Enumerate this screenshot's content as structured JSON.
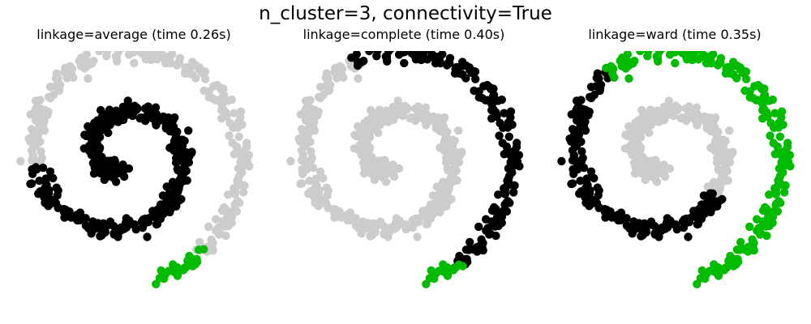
{
  "figure": {
    "title": "n_cluster=3, connectivity=True"
  },
  "chart_data": [
    {
      "type": "scatter",
      "title": "linkage=average (time 0.26s)",
      "xlabel": "",
      "ylabel": "",
      "axes_visible": false,
      "cluster_colors": [
        "#000000",
        "#cccccc",
        "#00bb00"
      ],
      "assignment": [
        {
          "cluster": 0,
          "t_from": 0.0,
          "t_to": 0.62
        },
        {
          "cluster": 1,
          "t_from": 0.62,
          "t_to": 0.965
        },
        {
          "cluster": 2,
          "t_from": 0.965,
          "t_to": 1.0
        }
      ]
    },
    {
      "type": "scatter",
      "title": "linkage=complete (time 0.40s)",
      "xlabel": "",
      "ylabel": "",
      "axes_visible": false,
      "cluster_colors": [
        "#000000",
        "#cccccc",
        "#00bb00"
      ],
      "assignment": [
        {
          "cluster": 1,
          "t_from": 0.0,
          "t_to": 0.73
        },
        {
          "cluster": 0,
          "t_from": 0.73,
          "t_to": 0.975
        },
        {
          "cluster": 2,
          "t_from": 0.975,
          "t_to": 1.0
        }
      ]
    },
    {
      "type": "scatter",
      "title": "linkage=ward (time 0.35s)",
      "xlabel": "",
      "ylabel": "",
      "axes_visible": false,
      "cluster_colors": [
        "#000000",
        "#cccccc",
        "#00bb00"
      ],
      "assignment": [
        {
          "cluster": 1,
          "t_from": 0.0,
          "t_to": 0.43
        },
        {
          "cluster": 0,
          "t_from": 0.43,
          "t_to": 0.71
        },
        {
          "cluster": 2,
          "t_from": 0.71,
          "t_to": 1.0
        }
      ]
    }
  ]
}
